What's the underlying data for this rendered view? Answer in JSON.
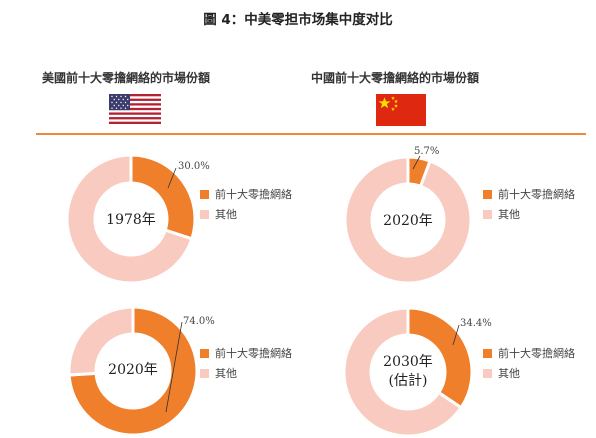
{
  "figure_title": "圖 4：中美零担市场集中度对比",
  "columns": {
    "us": {
      "title": "美國前十大零擔網絡的市場份額",
      "flag_icon": "us-flag-icon"
    },
    "cn": {
      "title": "中國前十大零擔網絡的市場份額",
      "flag_icon": "china-flag-icon"
    }
  },
  "colors": {
    "top10": "#f07f2b",
    "others": "#f9cbc0",
    "divider": "#e98a3d"
  },
  "legend": {
    "top10_label": "前十大零擔網絡",
    "others_label": "其他"
  },
  "chart_data": [
    {
      "type": "pie",
      "variant": "donut",
      "market": "美國",
      "center_label": [
        "1978年"
      ],
      "series": [
        {
          "name": "前十大零擔網絡",
          "value": 30.0
        },
        {
          "name": "其他",
          "value": 70.0
        }
      ],
      "data_label": "30.0%"
    },
    {
      "type": "pie",
      "variant": "donut",
      "market": "中國",
      "center_label": [
        "2020年"
      ],
      "series": [
        {
          "name": "前十大零擔網絡",
          "value": 5.7
        },
        {
          "name": "其他",
          "value": 94.3
        }
      ],
      "data_label": "5.7%"
    },
    {
      "type": "pie",
      "variant": "donut",
      "market": "美國",
      "center_label": [
        "2020年"
      ],
      "series": [
        {
          "name": "前十大零擔網絡",
          "value": 74.0
        },
        {
          "name": "其他",
          "value": 26.0
        }
      ],
      "data_label": "74.0%"
    },
    {
      "type": "pie",
      "variant": "donut",
      "market": "中國",
      "center_label": [
        "2030年",
        "(估計)"
      ],
      "series": [
        {
          "name": "前十大零擔網絡",
          "value": 34.4
        },
        {
          "name": "其他",
          "value": 65.6
        }
      ],
      "data_label": "34.4%"
    }
  ]
}
